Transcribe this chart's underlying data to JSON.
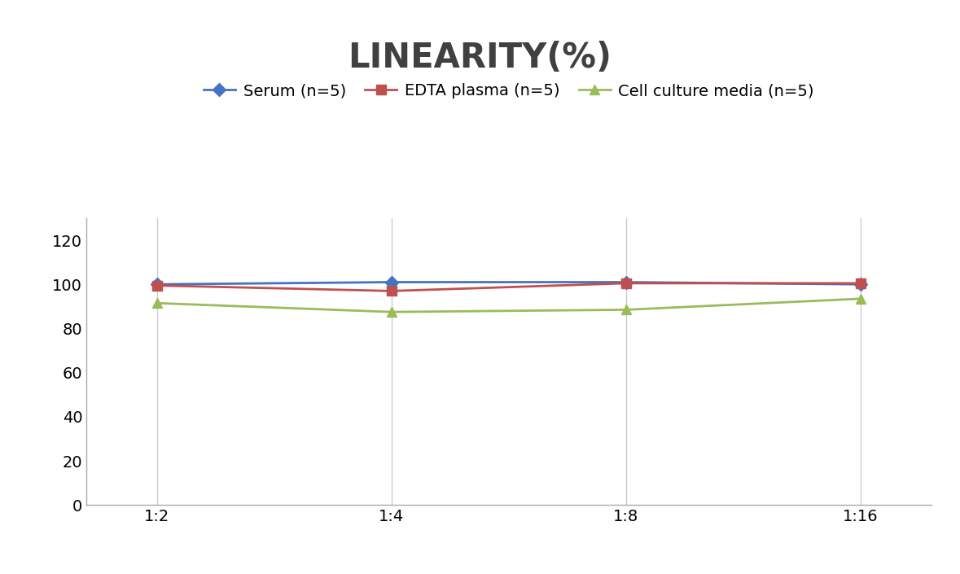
{
  "title": "LINEARITY(%)",
  "title_fontsize": 30,
  "title_fontweight": "bold",
  "title_color": "#404040",
  "x_labels": [
    "1:2",
    "1:4",
    "1:8",
    "1:16"
  ],
  "x_positions": [
    0,
    1,
    2,
    3
  ],
  "series": [
    {
      "label": "Serum (n=5)",
      "values": [
        100,
        101,
        101,
        100
      ],
      "color": "#4472C4",
      "marker": "D",
      "markersize": 8,
      "linewidth": 2
    },
    {
      "label": "EDTA plasma (n=5)",
      "values": [
        99.5,
        97,
        100.5,
        100.5
      ],
      "color": "#C0504D",
      "marker": "s",
      "markersize": 8,
      "linewidth": 2
    },
    {
      "label": "Cell culture media (n=5)",
      "values": [
        91.5,
        87.5,
        88.5,
        93.5
      ],
      "color": "#9BBB59",
      "marker": "^",
      "markersize": 8,
      "linewidth": 2
    }
  ],
  "ylim": [
    0,
    130
  ],
  "yticks": [
    0,
    20,
    40,
    60,
    80,
    100,
    120
  ],
  "grid_color": "#CCCCCC",
  "grid_linewidth": 1,
  "background_color": "#FFFFFF",
  "legend_fontsize": 14,
  "tick_fontsize": 14,
  "axis_linecolor": "#AAAAAA"
}
